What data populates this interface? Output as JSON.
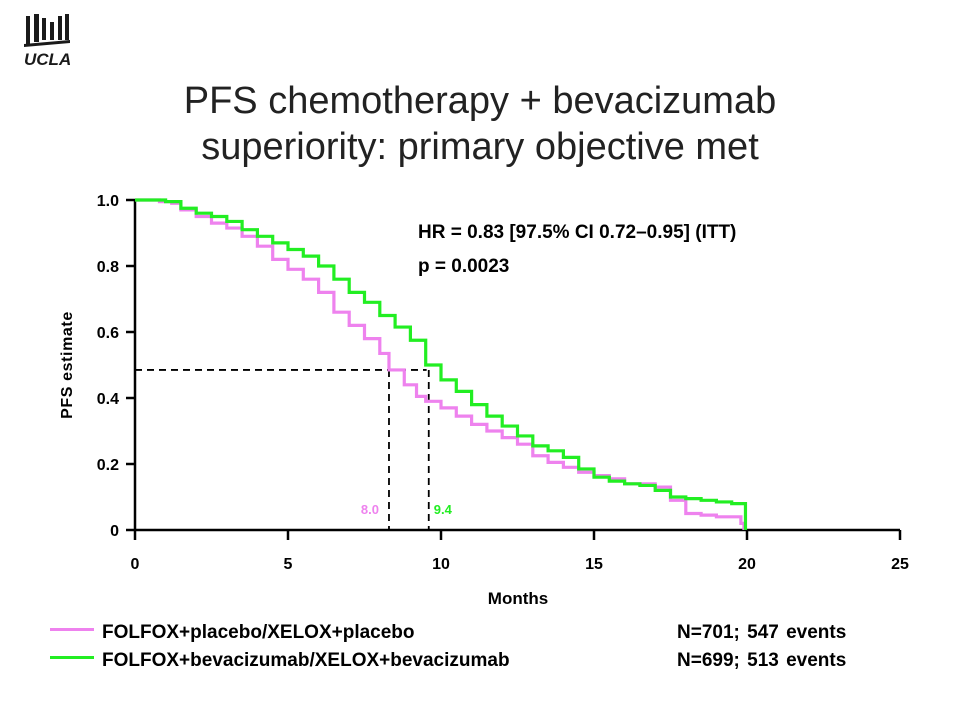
{
  "logo": {
    "text": "UCLA",
    "color": "#1a1a1a"
  },
  "title": {
    "line1": "PFS chemotherapy + bevacizumab",
    "line2": "superiority: primary objective met"
  },
  "chart_data": {
    "type": "line",
    "title": "PFS chemotherapy + bevacizumab superiority: primary objective met",
    "xlabel": "Months",
    "ylabel": "PFS estimate",
    "xlim": [
      0,
      25
    ],
    "ylim": [
      0,
      1.0
    ],
    "xticks": [
      0,
      5,
      10,
      15,
      20,
      25
    ],
    "yticks": [
      {
        "value": 0,
        "label": "0"
      },
      {
        "value": 0.2,
        "label": "0.2"
      },
      {
        "value": 0.4,
        "label": "0.4"
      },
      {
        "value": 0.6,
        "label": "0.6"
      },
      {
        "value": 0.8,
        "label": "0.8"
      },
      {
        "value": 1.0,
        "label": "1.0"
      }
    ],
    "grid": false,
    "legend_position": "bottom",
    "annotation": {
      "hr": "HR = 0.83 [97.5% CI 0.72–0.95] (ITT)",
      "p": "p = 0.0023"
    },
    "median_line_y": 0.485,
    "series": [
      {
        "name": "FOLFOX+placebo/XELOX+placebo",
        "n_text": "N=701; 547 events",
        "color": "#ee82ee",
        "median": 8.0,
        "median_label": "8.0",
        "points": [
          [
            0,
            1.0
          ],
          [
            0.8,
            0.995
          ],
          [
            1.2,
            0.99
          ],
          [
            1.5,
            0.97
          ],
          [
            2.0,
            0.95
          ],
          [
            2.5,
            0.93
          ],
          [
            3.0,
            0.915
          ],
          [
            3.5,
            0.89
          ],
          [
            4.0,
            0.86
          ],
          [
            4.5,
            0.82
          ],
          [
            5.0,
            0.79
          ],
          [
            5.5,
            0.76
          ],
          [
            6.0,
            0.72
          ],
          [
            6.5,
            0.66
          ],
          [
            7.0,
            0.62
          ],
          [
            7.5,
            0.58
          ],
          [
            8.0,
            0.535
          ],
          [
            8.3,
            0.485
          ],
          [
            8.8,
            0.44
          ],
          [
            9.2,
            0.405
          ],
          [
            9.5,
            0.39
          ],
          [
            10.0,
            0.37
          ],
          [
            10.5,
            0.345
          ],
          [
            11.0,
            0.32
          ],
          [
            11.5,
            0.3
          ],
          [
            12.0,
            0.28
          ],
          [
            12.5,
            0.26
          ],
          [
            13.0,
            0.225
          ],
          [
            13.5,
            0.205
          ],
          [
            14.0,
            0.19
          ],
          [
            14.5,
            0.175
          ],
          [
            15.0,
            0.165
          ],
          [
            15.5,
            0.155
          ],
          [
            16.0,
            0.14
          ],
          [
            16.5,
            0.14
          ],
          [
            17.0,
            0.13
          ],
          [
            17.5,
            0.09
          ],
          [
            18.0,
            0.05
          ],
          [
            18.5,
            0.045
          ],
          [
            19.0,
            0.04
          ],
          [
            19.5,
            0.04
          ],
          [
            19.8,
            0.02
          ],
          [
            19.9,
            0.0
          ]
        ]
      },
      {
        "name": "FOLFOX+bevacizumab/XELOX+bevacizumab",
        "n_text": "N=699; 513 events",
        "color": "#22ee22",
        "median": 9.4,
        "median_label": "9.4",
        "points": [
          [
            0,
            1.0
          ],
          [
            1.0,
            0.995
          ],
          [
            1.5,
            0.975
          ],
          [
            2.0,
            0.96
          ],
          [
            2.5,
            0.95
          ],
          [
            3.0,
            0.935
          ],
          [
            3.5,
            0.91
          ],
          [
            4.0,
            0.89
          ],
          [
            4.5,
            0.87
          ],
          [
            5.0,
            0.85
          ],
          [
            5.5,
            0.83
          ],
          [
            6.0,
            0.8
          ],
          [
            6.5,
            0.76
          ],
          [
            7.0,
            0.72
          ],
          [
            7.5,
            0.69
          ],
          [
            8.0,
            0.65
          ],
          [
            8.5,
            0.615
          ],
          [
            9.0,
            0.575
          ],
          [
            9.5,
            0.5
          ],
          [
            10.0,
            0.455
          ],
          [
            10.5,
            0.42
          ],
          [
            11.0,
            0.38
          ],
          [
            11.5,
            0.345
          ],
          [
            12.0,
            0.315
          ],
          [
            12.5,
            0.285
          ],
          [
            13.0,
            0.255
          ],
          [
            13.5,
            0.24
          ],
          [
            14.0,
            0.22
          ],
          [
            14.5,
            0.185
          ],
          [
            15.0,
            0.16
          ],
          [
            15.5,
            0.148
          ],
          [
            16.0,
            0.14
          ],
          [
            16.5,
            0.135
          ],
          [
            17.0,
            0.12
          ],
          [
            17.5,
            0.1
          ],
          [
            18.0,
            0.095
          ],
          [
            18.5,
            0.09
          ],
          [
            19.0,
            0.085
          ],
          [
            19.5,
            0.08
          ],
          [
            19.9,
            0.08
          ],
          [
            19.95,
            0.0
          ]
        ]
      }
    ]
  }
}
